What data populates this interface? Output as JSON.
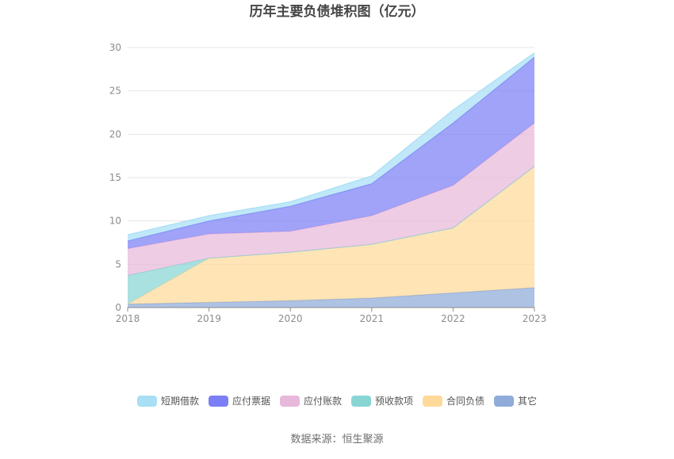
{
  "chart_data": {
    "type": "area",
    "stacked": true,
    "title": "历年主要负债堆积图（亿元）",
    "xlabel": "",
    "ylabel": "",
    "categories": [
      "2018",
      "2019",
      "2020",
      "2021",
      "2022",
      "2023"
    ],
    "ylim": [
      0,
      30
    ],
    "yticks": [
      0,
      5,
      10,
      15,
      20,
      25,
      30
    ],
    "grid": true,
    "legend_position": "bottom",
    "series": [
      {
        "name": "其它",
        "color": "#8fabd9",
        "values": [
          0.4,
          0.6,
          0.8,
          1.1,
          1.7,
          2.3
        ]
      },
      {
        "name": "合同负债",
        "color": "#ffd99a",
        "values": [
          0.0,
          5.1,
          5.6,
          6.2,
          7.5,
          14.0
        ]
      },
      {
        "name": "预收款项",
        "color": "#88d6d4",
        "values": [
          3.3,
          0.0,
          0.0,
          0.0,
          0.0,
          0.0
        ]
      },
      {
        "name": "应付账款",
        "color": "#e8b8da",
        "values": [
          3.1,
          2.8,
          2.4,
          3.3,
          4.9,
          5.0
        ]
      },
      {
        "name": "应付票据",
        "color": "#7b7ff5",
        "values": [
          0.9,
          1.5,
          2.9,
          3.7,
          7.2,
          7.6
        ]
      },
      {
        "name": "短期借款",
        "color": "#a8dff5",
        "values": [
          0.7,
          0.6,
          0.5,
          0.9,
          1.5,
          0.5
        ]
      }
    ],
    "legend_order": [
      "短期借款",
      "应付票据",
      "应付账款",
      "预收款项",
      "合同负债",
      "其它"
    ]
  },
  "source_text": "数据来源：恒生聚源"
}
